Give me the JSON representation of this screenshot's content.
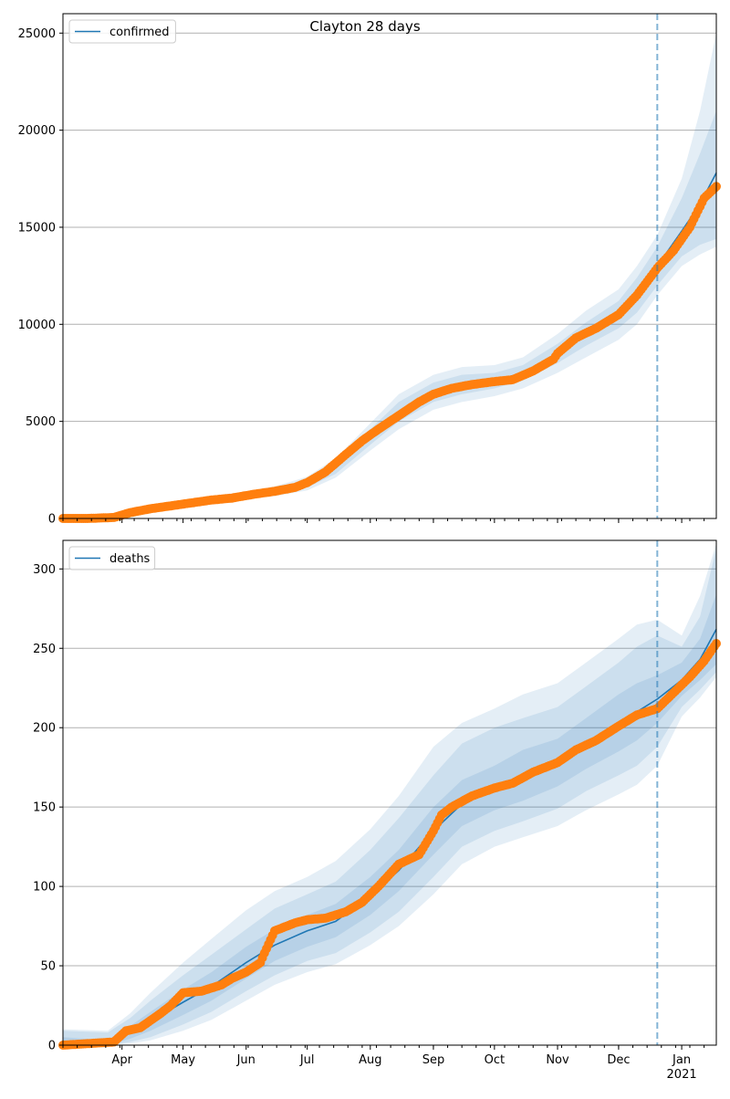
{
  "figure": {
    "title": "Clayton 28 days"
  },
  "colors": {
    "model_line": "#1f77b4",
    "observed": "#ff7f0e",
    "band": "#1f77b4",
    "grid": "#b0b0b0",
    "forecast_line": "#1f77b4"
  },
  "chart_data": [
    {
      "type": "line",
      "legend": [
        "confirmed"
      ],
      "legend_position": "top-left",
      "grid": "horizontal",
      "ylim": [
        0,
        26000
      ],
      "yticks": [
        0,
        5000,
        10000,
        15000,
        20000,
        25000
      ],
      "x_range": [
        "2020-03-03",
        "2021-01-18"
      ],
      "x_tick_labels": [
        {
          "date": "2020-04-01",
          "label": "Apr"
        },
        {
          "date": "2020-05-01",
          "label": "May"
        },
        {
          "date": "2020-06-01",
          "label": "Jun"
        },
        {
          "date": "2020-07-01",
          "label": "Jul"
        },
        {
          "date": "2020-08-01",
          "label": "Aug"
        },
        {
          "date": "2020-09-01",
          "label": "Sep"
        },
        {
          "date": "2020-10-01",
          "label": "Oct"
        },
        {
          "date": "2020-11-01",
          "label": "Nov"
        },
        {
          "date": "2020-12-01",
          "label": "Dec"
        },
        {
          "date": "2021-01-01",
          "label": "Jan\n2021"
        }
      ],
      "forecast_start": "2020-12-20",
      "series": [
        {
          "name": "confirmed",
          "kind": "model",
          "x": [
            "2020-03-03",
            "2020-03-20",
            "2020-04-01",
            "2020-04-15",
            "2020-05-01",
            "2020-05-15",
            "2020-06-01",
            "2020-06-15",
            "2020-07-01",
            "2020-07-15",
            "2020-08-01",
            "2020-08-15",
            "2020-09-01",
            "2020-09-15",
            "2020-10-01",
            "2020-10-15",
            "2020-11-01",
            "2020-11-15",
            "2020-12-01",
            "2020-12-10",
            "2020-12-20",
            "2021-01-01",
            "2021-01-10",
            "2021-01-18"
          ],
          "y": [
            0,
            10,
            150,
            500,
            800,
            1000,
            1200,
            1400,
            1800,
            2600,
            4200,
            5500,
            6500,
            6900,
            7100,
            7500,
            8500,
            9500,
            10500,
            11500,
            13000,
            14800,
            16200,
            17800
          ],
          "bands": [
            {
              "lower": [
                0,
                0,
                100,
                400,
                700,
                900,
                1100,
                1250,
                1600,
                2300,
                3800,
                5000,
                6000,
                6400,
                6700,
                7100,
                8000,
                8900,
                9800,
                10600,
                12000,
                13500,
                14100,
                14400
              ],
              "upper": [
                50,
                30,
                200,
                600,
                900,
                1100,
                1300,
                1550,
                2000,
                2900,
                4600,
                6000,
                7000,
                7400,
                7500,
                7900,
                9000,
                10100,
                11200,
                12400,
                14000,
                16500,
                18800,
                21000
              ]
            },
            {
              "lower": [
                0,
                0,
                80,
                360,
                650,
                850,
                1030,
                1150,
                1450,
                2100,
                3500,
                4600,
                5600,
                6000,
                6300,
                6700,
                7500,
                8300,
                9200,
                10000,
                11500,
                13000,
                13600,
                14000
              ],
              "upper": [
                80,
                40,
                240,
                650,
                960,
                1160,
                1380,
                1650,
                2150,
                3100,
                4900,
                6400,
                7400,
                7800,
                7900,
                8300,
                9500,
                10700,
                11800,
                13000,
                14600,
                17500,
                21000,
                25000
              ]
            }
          ]
        },
        {
          "name": "observed confirmed",
          "kind": "observed",
          "x": [
            "2020-03-03",
            "2020-03-15",
            "2020-03-28",
            "2020-04-05",
            "2020-04-15",
            "2020-04-25",
            "2020-05-05",
            "2020-05-15",
            "2020-05-25",
            "2020-06-05",
            "2020-06-15",
            "2020-06-25",
            "2020-07-01",
            "2020-07-10",
            "2020-07-20",
            "2020-07-28",
            "2020-08-05",
            "2020-08-15",
            "2020-08-25",
            "2020-09-01",
            "2020-09-10",
            "2020-09-20",
            "2020-10-01",
            "2020-10-10",
            "2020-10-20",
            "2020-10-30",
            "2020-11-01",
            "2020-11-10",
            "2020-11-20",
            "2020-12-01",
            "2020-12-10",
            "2020-12-20",
            "2020-12-28",
            "2021-01-05",
            "2021-01-12",
            "2021-01-18"
          ],
          "y": [
            0,
            0,
            50,
            300,
            500,
            650,
            800,
            950,
            1050,
            1250,
            1400,
            1600,
            1850,
            2400,
            3300,
            4000,
            4600,
            5300,
            6000,
            6400,
            6700,
            6900,
            7050,
            7150,
            7600,
            8200,
            8500,
            9300,
            9800,
            10500,
            11500,
            12900,
            13800,
            15000,
            16500,
            17100
          ]
        }
      ]
    },
    {
      "type": "line",
      "legend": [
        "deaths"
      ],
      "legend_position": "top-left",
      "grid": "horizontal",
      "ylim": [
        0,
        318
      ],
      "yticks": [
        0,
        50,
        100,
        150,
        200,
        250,
        300
      ],
      "x_range": [
        "2020-03-03",
        "2021-01-18"
      ],
      "x_tick_labels": [
        {
          "date": "2020-04-01",
          "label": "Apr"
        },
        {
          "date": "2020-05-01",
          "label": "May"
        },
        {
          "date": "2020-06-01",
          "label": "Jun"
        },
        {
          "date": "2020-07-01",
          "label": "Jul"
        },
        {
          "date": "2020-08-01",
          "label": "Aug"
        },
        {
          "date": "2020-09-01",
          "label": "Sep"
        },
        {
          "date": "2020-10-01",
          "label": "Oct"
        },
        {
          "date": "2020-11-01",
          "label": "Nov"
        },
        {
          "date": "2020-12-01",
          "label": "Dec"
        },
        {
          "date": "2021-01-01",
          "label": "Jan\n2021"
        }
      ],
      "forecast_start": "2020-12-20",
      "series": [
        {
          "name": "deaths",
          "kind": "model",
          "x": [
            "2020-03-03",
            "2020-03-25",
            "2020-04-05",
            "2020-04-15",
            "2020-05-01",
            "2020-05-15",
            "2020-06-01",
            "2020-06-15",
            "2020-07-01",
            "2020-07-15",
            "2020-08-01",
            "2020-08-15",
            "2020-09-01",
            "2020-09-15",
            "2020-10-01",
            "2020-10-15",
            "2020-11-01",
            "2020-11-15",
            "2020-12-01",
            "2020-12-10",
            "2020-12-20",
            "2021-01-01",
            "2021-01-10",
            "2021-01-18"
          ],
          "y": [
            0,
            0,
            8,
            15,
            27,
            37,
            52,
            63,
            72,
            78,
            94,
            110,
            135,
            152,
            162,
            170,
            178,
            190,
            203,
            210,
            218,
            230,
            243,
            262
          ],
          "bands": [
            {
              "lower": [
                0,
                0,
                4,
                9,
                19,
                28,
                42,
                53,
                62,
                68,
                82,
                97,
                120,
                138,
                148,
                154,
                163,
                174,
                185,
                192,
                203,
                220,
                230,
                240
              ],
              "upper": [
                5,
                3,
                12,
                21,
                35,
                46,
                62,
                73,
                82,
                89,
                106,
                123,
                150,
                167,
                176,
                186,
                193,
                206,
                221,
                228,
                233,
                241,
                256,
                284
              ]
            },
            {
              "lower": [
                0,
                0,
                2,
                5,
                13,
                21,
                34,
                44,
                53,
                58,
                71,
                84,
                106,
                125,
                135,
                141,
                149,
                160,
                170,
                176,
                188,
                213,
                224,
                235
              ],
              "upper": [
                9,
                8,
                17,
                28,
                44,
                57,
                73,
                86,
                95,
                103,
                123,
                143,
                170,
                190,
                200,
                206,
                213,
                226,
                241,
                251,
                258,
                251,
                270,
                313
              ]
            },
            {
              "lower": [
                0,
                0,
                1,
                3,
                9,
                16,
                28,
                38,
                46,
                51,
                63,
                75,
                95,
                114,
                125,
                131,
                138,
                148,
                158,
                164,
                176,
                207,
                219,
                232
              ],
              "upper": [
                10,
                9,
                20,
                33,
                52,
                67,
                85,
                97,
                106,
                116,
                136,
                157,
                188,
                203,
                212,
                221,
                228,
                241,
                256,
                265,
                268,
                258,
                283,
                316
              ]
            }
          ]
        },
        {
          "name": "observed deaths",
          "kind": "observed",
          "x": [
            "2020-03-03",
            "2020-03-28",
            "2020-04-03",
            "2020-04-10",
            "2020-04-20",
            "2020-04-25",
            "2020-05-01",
            "2020-05-10",
            "2020-05-20",
            "2020-05-25",
            "2020-06-01",
            "2020-06-08",
            "2020-06-10",
            "2020-06-15",
            "2020-06-25",
            "2020-07-01",
            "2020-07-10",
            "2020-07-20",
            "2020-07-28",
            "2020-08-05",
            "2020-08-15",
            "2020-08-25",
            "2020-09-01",
            "2020-09-05",
            "2020-09-10",
            "2020-09-20",
            "2020-10-01",
            "2020-10-10",
            "2020-10-20",
            "2020-11-01",
            "2020-11-10",
            "2020-11-20",
            "2020-12-01",
            "2020-12-10",
            "2020-12-20",
            "2020-12-28",
            "2021-01-05",
            "2021-01-12",
            "2021-01-18"
          ],
          "y": [
            0,
            2,
            9,
            11,
            20,
            25,
            33,
            34,
            38,
            42,
            46,
            52,
            58,
            72,
            77,
            79,
            80,
            84,
            90,
            100,
            114,
            120,
            135,
            145,
            150,
            157,
            162,
            165,
            172,
            178,
            186,
            192,
            201,
            208,
            212,
            222,
            232,
            242,
            253
          ]
        }
      ]
    }
  ]
}
